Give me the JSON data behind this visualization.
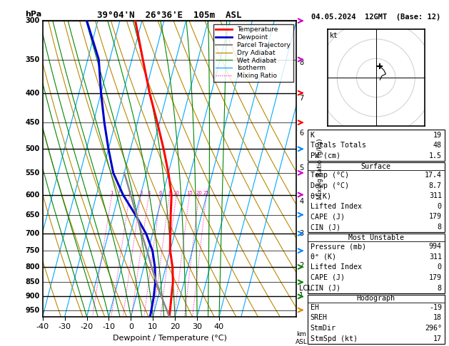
{
  "title_left": "39°04'N  26°36'E  105m  ASL",
  "title_right": "04.05.2024  12GMT  (Base: 12)",
  "xlabel": "Dewpoint / Temperature (°C)",
  "pressure_levels": [
    300,
    350,
    400,
    450,
    500,
    550,
    600,
    650,
    700,
    750,
    800,
    850,
    900,
    950
  ],
  "temp_range": [
    -40,
    40
  ],
  "SKEW": 35,
  "isotherm_temps": [
    -50,
    -40,
    -30,
    -20,
    -10,
    0,
    10,
    20,
    30,
    40,
    50
  ],
  "dry_adiabat_thetas": [
    -40,
    -30,
    -20,
    -10,
    0,
    10,
    20,
    30,
    40,
    50,
    60,
    70,
    80,
    90,
    100,
    110,
    120
  ],
  "wet_adiabat_T0s": [
    -20,
    -15,
    -10,
    -5,
    0,
    5,
    10,
    15,
    20,
    25,
    30,
    35,
    40
  ],
  "mixing_ratios": [
    1,
    2,
    3,
    4,
    6,
    8,
    10,
    15,
    20,
    25
  ],
  "temp_profile_p": [
    975,
    950,
    900,
    850,
    800,
    750,
    700,
    650,
    600,
    550,
    500,
    450,
    400,
    350,
    300
  ],
  "temp_profile_t": [
    17.4,
    17.0,
    16.0,
    15.0,
    13.0,
    10.0,
    8.0,
    6.0,
    4.0,
    0.0,
    -5.0,
    -11.0,
    -18.0,
    -25.0,
    -33.0
  ],
  "dewp_profile_p": [
    975,
    950,
    900,
    850,
    800,
    750,
    700,
    650,
    600,
    550,
    500,
    450,
    400,
    350,
    300
  ],
  "dewp_profile_t": [
    8.7,
    8.5,
    8.0,
    7.0,
    5.0,
    2.0,
    -3.0,
    -10.0,
    -18.0,
    -25.0,
    -30.0,
    -35.0,
    -40.0,
    -45.0,
    -55.0
  ],
  "parcel_profile_p": [
    975,
    900,
    850,
    800,
    750,
    700,
    650,
    600,
    550
  ],
  "parcel_profile_t": [
    17.4,
    11.5,
    7.5,
    3.5,
    -0.5,
    -5.0,
    -9.5,
    -14.5,
    -20.0
  ],
  "lcl_pressure": 870,
  "km_ticks": [
    1,
    2,
    3,
    4,
    5,
    6,
    7,
    8
  ],
  "km_pressures": [
    896,
    795,
    701,
    616,
    539,
    470,
    409,
    354
  ],
  "colors": {
    "temperature": "#ff0000",
    "dewpoint": "#0000cc",
    "parcel": "#888888",
    "dry_adiabat": "#bb8800",
    "wet_adiabat": "#008800",
    "isotherm": "#00aaff",
    "mixing_ratio": "#ff00aa",
    "background": "#ffffff",
    "grid": "#000000"
  },
  "legend_items": [
    {
      "label": "Temperature",
      "color": "#ff0000",
      "lw": 2.0,
      "ls": "solid"
    },
    {
      "label": "Dewpoint",
      "color": "#0000cc",
      "lw": 2.0,
      "ls": "solid"
    },
    {
      "label": "Parcel Trajectory",
      "color": "#888888",
      "lw": 1.5,
      "ls": "solid"
    },
    {
      "label": "Dry Adiabat",
      "color": "#bb8800",
      "lw": 0.9,
      "ls": "solid"
    },
    {
      "label": "Wet Adiabat",
      "color": "#008800",
      "lw": 0.9,
      "ls": "solid"
    },
    {
      "label": "Isotherm",
      "color": "#00aaff",
      "lw": 0.9,
      "ls": "solid"
    },
    {
      "label": "Mixing Ratio",
      "color": "#ff00aa",
      "lw": 0.8,
      "ls": "dotted"
    }
  ],
  "info_box": {
    "K": 19,
    "Totals Totals": 48,
    "PW_cm": 1.5,
    "Surface_Temp": 17.4,
    "Surface_Dewp": 8.7,
    "Surface_ThetaE": 311,
    "Surface_LI": 0,
    "Surface_CAPE": 179,
    "Surface_CIN": 8,
    "MU_Pressure": 994,
    "MU_ThetaE": 311,
    "MU_LI": 0,
    "MU_CAPE": 179,
    "MU_CIN": 8,
    "Hodo_EH": -19,
    "Hodo_SREH": 18,
    "Hodo_StmDir": 296,
    "Hodo_StmSpd": 17
  },
  "wind_barb_levels": [
    {
      "p": 950,
      "color": "#dd8800"
    },
    {
      "p": 900,
      "color": "#008800"
    },
    {
      "p": 850,
      "color": "#008800"
    },
    {
      "p": 800,
      "color": "#008800"
    },
    {
      "p": 750,
      "color": "#0088ff"
    },
    {
      "p": 700,
      "color": "#0088ff"
    },
    {
      "p": 650,
      "color": "#0088ff"
    },
    {
      "p": 600,
      "color": "#cc00cc"
    },
    {
      "p": 550,
      "color": "#cc00cc"
    },
    {
      "p": 500,
      "color": "#0088ff"
    },
    {
      "p": 450,
      "color": "#ff0000"
    },
    {
      "p": 400,
      "color": "#ff0000"
    },
    {
      "p": 350,
      "color": "#cc00cc"
    },
    {
      "p": 300,
      "color": "#cc00cc"
    }
  ],
  "hodo_circles": [
    10,
    20,
    30
  ],
  "hodo_winds_u": [
    2,
    3,
    5,
    4,
    3,
    2
  ],
  "hodo_winds_v": [
    -1,
    1,
    2,
    4,
    5,
    6
  ],
  "p_min": 300,
  "p_max": 975,
  "T_min": -40,
  "T_max": 40
}
